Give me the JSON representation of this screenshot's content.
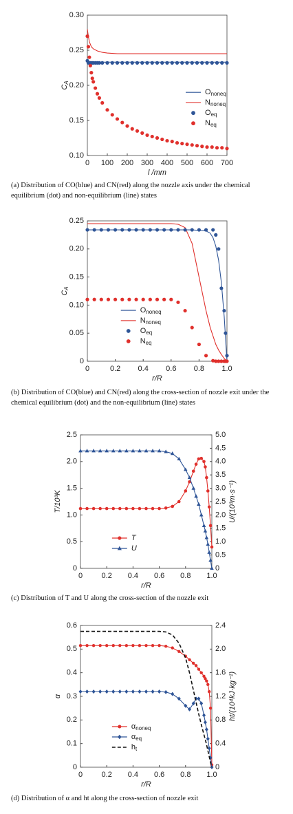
{
  "chart_data": [
    {
      "type": "line",
      "xlabel": "l /mm",
      "ylabel": "CA",
      "caption": "(a) Distribution of CO(blue) and CN(red) along the nozzle axis under the chemical equilibrium (dot) and non-equilibrium (line) states",
      "xlim": [
        0,
        700
      ],
      "xticks": [
        0,
        100,
        200,
        300,
        400,
        500,
        600,
        700
      ],
      "ylim": [
        0.1,
        0.3
      ],
      "yticks": [
        {
          "value": 0.1,
          "label": "0.10"
        },
        {
          "value": 0.15,
          "label": "0.15"
        },
        {
          "value": 0.2,
          "label": "0.20"
        },
        {
          "value": 0.25,
          "label": "0.25"
        },
        {
          "value": 0.3,
          "label": "0.30"
        }
      ],
      "legend": "center right",
      "series": [
        {
          "name": "Ononeq",
          "color": "#2f5597",
          "style": "line",
          "x": [
            0,
            5,
            10,
            20,
            30,
            50,
            75,
            100,
            150,
            200,
            300,
            400,
            500,
            600,
            700
          ],
          "values": [
            0.231,
            0.232,
            0.233,
            0.233,
            0.233,
            0.233,
            0.233,
            0.233,
            0.233,
            0.233,
            0.233,
            0.233,
            0.233,
            0.233,
            0.233
          ]
        },
        {
          "name": "Nnoneq",
          "color": "#e0302c",
          "style": "line",
          "x": [
            0,
            5,
            10,
            20,
            30,
            50,
            75,
            100,
            150,
            200,
            300,
            400,
            500,
            600,
            700
          ],
          "values": [
            0.28,
            0.27,
            0.262,
            0.255,
            0.252,
            0.249,
            0.247,
            0.246,
            0.245,
            0.245,
            0.245,
            0.245,
            0.245,
            0.245,
            0.245
          ]
        },
        {
          "name": "Oeq",
          "color": "#2f5597",
          "style": "markers",
          "marker": "circle",
          "x": [
            0,
            5,
            10,
            15,
            20,
            25,
            30,
            40,
            50,
            60,
            75,
            100,
            125,
            150,
            175,
            200,
            225,
            250,
            275,
            300,
            325,
            350,
            375,
            400,
            425,
            450,
            475,
            500,
            525,
            550,
            575,
            600,
            625,
            650,
            675,
            700
          ],
          "values": [
            0.235,
            0.232,
            0.232,
            0.232,
            0.232,
            0.232,
            0.232,
            0.232,
            0.232,
            0.232,
            0.232,
            0.232,
            0.232,
            0.232,
            0.232,
            0.232,
            0.232,
            0.232,
            0.232,
            0.232,
            0.232,
            0.232,
            0.232,
            0.232,
            0.232,
            0.232,
            0.232,
            0.232,
            0.232,
            0.232,
            0.232,
            0.232,
            0.232,
            0.232,
            0.232,
            0.232
          ]
        },
        {
          "name": "Neq",
          "color": "#e0302c",
          "style": "markers",
          "marker": "circle",
          "x": [
            0,
            5,
            10,
            15,
            20,
            25,
            30,
            40,
            50,
            60,
            75,
            100,
            125,
            150,
            175,
            200,
            225,
            250,
            275,
            300,
            325,
            350,
            375,
            400,
            425,
            450,
            475,
            500,
            525,
            550,
            575,
            600,
            625,
            650,
            675,
            700
          ],
          "values": [
            0.27,
            0.255,
            0.24,
            0.228,
            0.218,
            0.21,
            0.205,
            0.196,
            0.188,
            0.182,
            0.175,
            0.165,
            0.158,
            0.152,
            0.147,
            0.142,
            0.138,
            0.135,
            0.132,
            0.129,
            0.127,
            0.125,
            0.123,
            0.121,
            0.12,
            0.118,
            0.117,
            0.116,
            0.115,
            0.114,
            0.113,
            0.112,
            0.112,
            0.111,
            0.111,
            0.11
          ]
        }
      ]
    },
    {
      "type": "line",
      "xlabel": "r/R",
      "ylabel": "CA",
      "caption": "(b) Distribution of CO(blue) and CN(red) along the cross-section of nozzle exit under the chemical equilibrium (dot) and the non-equilibrium (line) states",
      "xlim": [
        0,
        1
      ],
      "xticks": [
        0,
        0.2,
        0.4,
        0.6,
        0.8,
        {
          "value": 1,
          "label": "1.0"
        }
      ],
      "ylim": [
        0,
        0.25
      ],
      "yticks": [
        0,
        0.05,
        {
          "value": 0.1,
          "label": "0.10"
        },
        0.15,
        {
          "value": 0.2,
          "label": "0.20"
        },
        0.25
      ],
      "legend": "lower left",
      "series": [
        {
          "name": "Ononeq",
          "color": "#2f5597",
          "style": "line",
          "x": [
            0,
            0.2,
            0.4,
            0.6,
            0.65,
            0.7,
            0.75,
            0.8,
            0.85,
            0.88,
            0.9,
            0.92,
            0.94,
            0.96,
            0.98,
            1
          ],
          "values": [
            0.234,
            0.234,
            0.234,
            0.234,
            0.234,
            0.234,
            0.234,
            0.233,
            0.232,
            0.228,
            0.22,
            0.205,
            0.18,
            0.14,
            0.08,
            0
          ]
        },
        {
          "name": "Nnoneq",
          "color": "#e0302c",
          "style": "line",
          "x": [
            0,
            0.2,
            0.4,
            0.6,
            0.65,
            0.7,
            0.75,
            0.8,
            0.85,
            0.88,
            0.9,
            0.92,
            0.94,
            0.96,
            0.98,
            1
          ],
          "values": [
            0.245,
            0.245,
            0.245,
            0.245,
            0.244,
            0.238,
            0.21,
            0.15,
            0.09,
            0.06,
            0.045,
            0.03,
            0.02,
            0.012,
            0.005,
            0
          ]
        },
        {
          "name": "Oeq",
          "color": "#2f5597",
          "style": "markers",
          "marker": "circle",
          "x": [
            0,
            0.05,
            0.1,
            0.15,
            0.2,
            0.25,
            0.3,
            0.35,
            0.4,
            0.45,
            0.5,
            0.55,
            0.6,
            0.65,
            0.7,
            0.75,
            0.8,
            0.85,
            0.9,
            0.92,
            0.94,
            0.96,
            0.98,
            0.99,
            1
          ],
          "values": [
            0.234,
            0.234,
            0.234,
            0.234,
            0.234,
            0.234,
            0.234,
            0.234,
            0.234,
            0.234,
            0.234,
            0.234,
            0.234,
            0.234,
            0.234,
            0.234,
            0.234,
            0.234,
            0.234,
            0.225,
            0.2,
            0.13,
            0.09,
            0.05,
            0.01
          ]
        },
        {
          "name": "Neq",
          "color": "#e0302c",
          "style": "markers",
          "marker": "circle",
          "x": [
            0,
            0.05,
            0.1,
            0.15,
            0.2,
            0.25,
            0.3,
            0.35,
            0.4,
            0.45,
            0.5,
            0.55,
            0.6,
            0.65,
            0.7,
            0.75,
            0.8,
            0.85,
            0.9,
            0.92,
            0.94,
            0.96,
            0.98,
            0.99,
            1
          ],
          "values": [
            0.11,
            0.11,
            0.11,
            0.11,
            0.11,
            0.11,
            0.11,
            0.11,
            0.11,
            0.11,
            0.11,
            0.11,
            0.11,
            0.105,
            0.09,
            0.06,
            0.03,
            0.01,
            0.001,
            0,
            0,
            0,
            0,
            0,
            0
          ]
        }
      ]
    },
    {
      "type": "line",
      "xlabel": "r/R",
      "ylabel": "T/10³K",
      "y2label": "U/(10³m·s⁻¹)",
      "caption": "(c) Distribution of T and U along the cross-section of the nozzle exit",
      "xlim": [
        0,
        1
      ],
      "xticks": [
        0,
        0.2,
        0.4,
        0.6,
        0.8,
        {
          "value": 1,
          "label": "1.0"
        }
      ],
      "ylim": [
        0,
        2.5
      ],
      "yticks": [
        0,
        0.5,
        {
          "value": 1,
          "label": "1.0"
        },
        1.5,
        {
          "value": 2,
          "label": "2.0"
        },
        2.5
      ],
      "y2lim": [
        0,
        5
      ],
      "y2ticks": [
        0,
        0.5,
        {
          "value": 1,
          "label": "1.0"
        },
        1.5,
        {
          "value": 2,
          "label": "2.0"
        },
        2.5,
        {
          "value": 3,
          "label": "3.0"
        },
        3.5,
        {
          "value": 4,
          "label": "4.0"
        },
        4.5,
        {
          "value": 5,
          "label": "5.0"
        }
      ],
      "legend": "lower left",
      "x": [
        0,
        0.05,
        0.1,
        0.15,
        0.2,
        0.25,
        0.3,
        0.35,
        0.4,
        0.45,
        0.5,
        0.55,
        0.6,
        0.65,
        0.7,
        0.75,
        0.8,
        0.83,
        0.86,
        0.88,
        0.9,
        0.92,
        0.94,
        0.95,
        0.96,
        0.97,
        0.98,
        0.99,
        1
      ],
      "series": [
        {
          "name": "T",
          "color": "#e0302c",
          "style": "line+markers",
          "marker": "circle",
          "values": [
            1.12,
            1.12,
            1.12,
            1.12,
            1.12,
            1.12,
            1.12,
            1.12,
            1.12,
            1.12,
            1.12,
            1.12,
            1.12,
            1.13,
            1.16,
            1.25,
            1.45,
            1.62,
            1.82,
            1.95,
            2.05,
            2.06,
            2,
            1.9,
            1.7,
            1.45,
            1.15,
            0.8,
            0.4
          ]
        },
        {
          "name": "U",
          "color": "#2f5597",
          "style": "line+markers",
          "marker": "triangle",
          "axis": "y2",
          "values": [
            4.4,
            4.4,
            4.4,
            4.4,
            4.4,
            4.4,
            4.4,
            4.4,
            4.4,
            4.4,
            4.4,
            4.4,
            4.4,
            4.37,
            4.3,
            4.1,
            3.7,
            3.4,
            3,
            2.7,
            2.4,
            2,
            1.6,
            1.4,
            1.15,
            0.9,
            0.6,
            0.3,
            0
          ]
        }
      ]
    },
    {
      "type": "line",
      "xlabel": "r/R",
      "ylabel": "α",
      "y2label": "ht/(10⁴kJ·kg⁻¹)",
      "caption": "(d) Distribution of α and ht along the cross-section of nozzle exit",
      "xlim": [
        0,
        1
      ],
      "xticks": [
        0,
        0.2,
        0.4,
        0.6,
        0.8,
        {
          "value": 1,
          "label": "1.0"
        }
      ],
      "ylim": [
        0,
        0.6
      ],
      "yticks": [
        0,
        0.1,
        0.2,
        0.3,
        0.4,
        0.5,
        0.6
      ],
      "y2lim": [
        0,
        2.4
      ],
      "y2ticks": [
        0,
        0.4,
        0.8,
        1.2,
        1.6,
        {
          "value": 2,
          "label": "2.0"
        },
        2.4
      ],
      "legend": "lower left",
      "x": [
        0,
        0.05,
        0.1,
        0.15,
        0.2,
        0.25,
        0.3,
        0.35,
        0.4,
        0.45,
        0.5,
        0.55,
        0.6,
        0.65,
        0.7,
        0.75,
        0.8,
        0.83,
        0.86,
        0.88,
        0.9,
        0.92,
        0.94,
        0.95,
        0.96,
        0.97,
        0.98,
        0.99,
        1
      ],
      "series": [
        {
          "name": "αnoneq",
          "color": "#e0302c",
          "style": "line+markers",
          "marker": "circle",
          "values": [
            0.515,
            0.515,
            0.515,
            0.515,
            0.515,
            0.515,
            0.515,
            0.515,
            0.515,
            0.515,
            0.515,
            0.515,
            0.515,
            0.512,
            0.505,
            0.49,
            0.47,
            0.455,
            0.44,
            0.43,
            0.415,
            0.4,
            0.385,
            0.375,
            0.365,
            0.35,
            0.32,
            0.25,
            0.01
          ]
        },
        {
          "name": "αeq",
          "color": "#2f5597",
          "style": "line+markers",
          "marker": "diamond",
          "values": [
            0.32,
            0.32,
            0.32,
            0.32,
            0.32,
            0.32,
            0.32,
            0.32,
            0.32,
            0.32,
            0.32,
            0.32,
            0.32,
            0.318,
            0.31,
            0.29,
            0.26,
            0.245,
            0.27,
            0.29,
            0.29,
            0.27,
            0.22,
            0.19,
            0.16,
            0.12,
            0.08,
            0.04,
            0
          ]
        },
        {
          "name": "ht",
          "color": "#111111",
          "style": "line",
          "dash": true,
          "axis": "y2",
          "values": [
            2.3,
            2.3,
            2.3,
            2.3,
            2.3,
            2.3,
            2.3,
            2.3,
            2.3,
            2.3,
            2.3,
            2.3,
            2.3,
            2.29,
            2.24,
            2.1,
            1.85,
            1.6,
            1.3,
            1.1,
            0.9,
            0.72,
            0.55,
            0.47,
            0.38,
            0.28,
            0.18,
            0.08,
            0
          ]
        }
      ]
    }
  ]
}
